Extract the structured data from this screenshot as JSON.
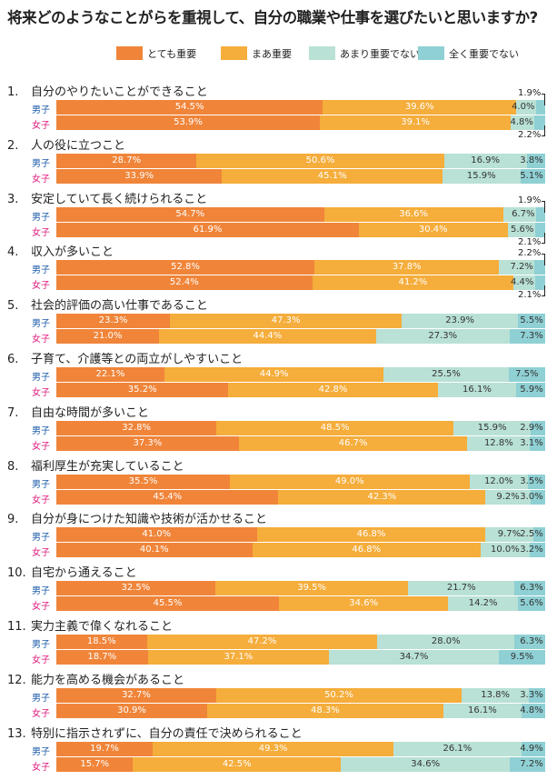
{
  "title": "将来どのようなことがらを重視して、自分の職業や仕事を選びたいと思いますか?",
  "chart_data": {
    "type": "bar",
    "orientation": "horizontal-stacked-100",
    "title": "将来どのようなことがらを重視して、自分の職業や仕事を選びたいと思いますか?",
    "legend_position": "top",
    "series_names": [
      "とても重要",
      "まあ重要",
      "あまり重要でない",
      "全く重要でない"
    ],
    "colors": [
      "#f0853a",
      "#f5ad3b",
      "#b9e1d6",
      "#8fd0d4"
    ],
    "group_labels": [
      "男子",
      "女子"
    ],
    "group_colors": [
      "#1a5aa8",
      "#e0197d"
    ],
    "unit": "%",
    "items": [
      {
        "num": "1.",
        "label": "自分のやりたいことができること",
        "male": [
          54.5,
          39.6,
          4.0,
          1.9
        ],
        "female": [
          53.9,
          39.1,
          4.8,
          2.2
        ]
      },
      {
        "num": "2.",
        "label": "人の役に立つこと",
        "male": [
          28.7,
          50.6,
          16.9,
          3.8
        ],
        "female": [
          33.9,
          45.1,
          15.9,
          5.1
        ]
      },
      {
        "num": "3.",
        "label": "安定していて長く続けられること",
        "male": [
          54.7,
          36.6,
          6.7,
          1.9
        ],
        "female": [
          61.9,
          30.4,
          5.6,
          2.1
        ]
      },
      {
        "num": "4.",
        "label": "収入が多いこと",
        "male": [
          52.8,
          37.8,
          7.2,
          2.2
        ],
        "female": [
          52.4,
          41.2,
          4.4,
          2.1
        ]
      },
      {
        "num": "5.",
        "label": "社会的評価の高い仕事であること",
        "male": [
          23.3,
          47.3,
          23.9,
          5.5
        ],
        "female": [
          21.0,
          44.4,
          27.3,
          7.3
        ]
      },
      {
        "num": "6.",
        "label": "子育て、介護等との両立がしやすいこと",
        "male": [
          22.1,
          44.9,
          25.5,
          7.5
        ],
        "female": [
          35.2,
          42.8,
          16.1,
          5.9
        ]
      },
      {
        "num": "7.",
        "label": "自由な時間が多いこと",
        "male": [
          32.8,
          48.5,
          15.9,
          2.9
        ],
        "female": [
          37.3,
          46.7,
          12.8,
          3.1
        ]
      },
      {
        "num": "8.",
        "label": "福利厚生が充実していること",
        "male": [
          35.5,
          49.0,
          12.0,
          3.5
        ],
        "female": [
          45.4,
          42.3,
          9.2,
          3.0
        ]
      },
      {
        "num": "9.",
        "label": "自分が身につけた知識や技術が活かせること",
        "male": [
          41.0,
          46.8,
          9.7,
          2.5
        ],
        "female": [
          40.1,
          46.8,
          10.0,
          3.2
        ]
      },
      {
        "num": "10.",
        "label": "自宅から通えること",
        "male": [
          32.5,
          39.5,
          21.7,
          6.3
        ],
        "female": [
          45.5,
          34.6,
          14.2,
          5.6
        ]
      },
      {
        "num": "11.",
        "label": "実力主義で偉くなれること",
        "male": [
          18.5,
          47.2,
          28.0,
          6.3
        ],
        "female": [
          18.7,
          37.1,
          34.7,
          9.5
        ]
      },
      {
        "num": "12.",
        "label": "能力を高める機会があること",
        "male": [
          32.7,
          50.2,
          13.8,
          3.3
        ],
        "female": [
          30.9,
          48.3,
          16.1,
          4.8
        ]
      },
      {
        "num": "13.",
        "label": "特別に指示されずに、自分の責任で決められること",
        "male": [
          19.7,
          49.3,
          26.1,
          4.9
        ],
        "female": [
          15.7,
          42.5,
          34.6,
          7.2
        ]
      }
    ]
  }
}
